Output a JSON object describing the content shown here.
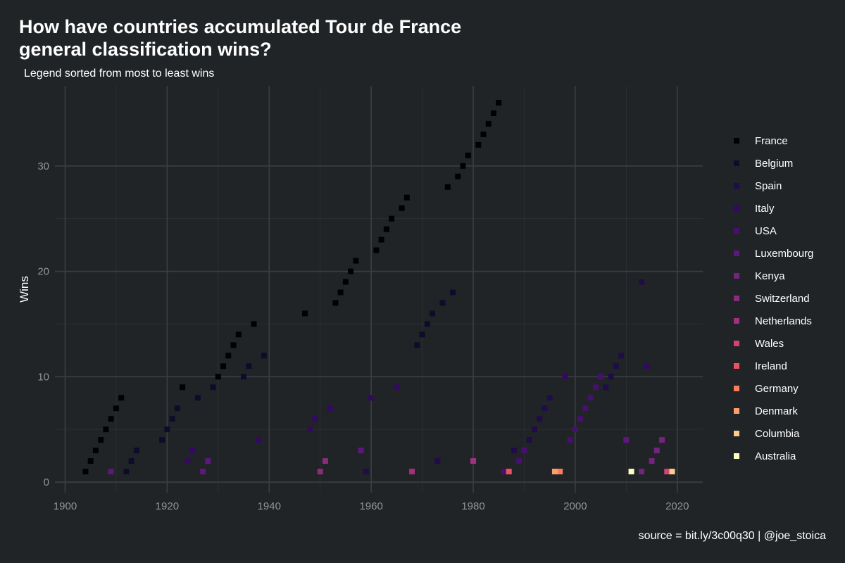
{
  "title_line1": "How have countries accumulated Tour de France",
  "title_line2": "general classification wins?",
  "subtitle": "Legend sorted from most to least wins",
  "caption": "source = bit.ly/3c00q30 | @joe_stoica",
  "chart_data": {
    "type": "scatter",
    "ylabel": "Wins",
    "xlabel": "",
    "xlim": [
      1898,
      2025
    ],
    "ylim": [
      -1,
      37.6
    ],
    "x_ticks": [
      1900,
      1920,
      1940,
      1960,
      1980,
      2000,
      2020
    ],
    "y_ticks": [
      0,
      10,
      20,
      30
    ],
    "grid": true,
    "legend_position": "right",
    "series": [
      {
        "name": "France",
        "color": "#000004",
        "points": [
          [
            1904,
            1
          ],
          [
            1905,
            2
          ],
          [
            1906,
            3
          ],
          [
            1907,
            4
          ],
          [
            1908,
            5
          ],
          [
            1909,
            6
          ],
          [
            1910,
            7
          ],
          [
            1911,
            8
          ],
          [
            1923,
            9
          ],
          [
            1930,
            10
          ],
          [
            1931,
            11
          ],
          [
            1932,
            12
          ],
          [
            1933,
            13
          ],
          [
            1934,
            14
          ],
          [
            1937,
            15
          ],
          [
            1947,
            16
          ],
          [
            1953,
            17
          ],
          [
            1954,
            18
          ],
          [
            1955,
            19
          ],
          [
            1956,
            20
          ],
          [
            1957,
            21
          ],
          [
            1961,
            22
          ],
          [
            1962,
            23
          ],
          [
            1963,
            24
          ],
          [
            1964,
            25
          ],
          [
            1966,
            26
          ],
          [
            1967,
            27
          ],
          [
            1975,
            28
          ],
          [
            1977,
            29
          ],
          [
            1978,
            30
          ],
          [
            1979,
            31
          ],
          [
            1981,
            32
          ],
          [
            1982,
            33
          ],
          [
            1983,
            34
          ],
          [
            1984,
            35
          ],
          [
            1985,
            36
          ]
        ]
      },
      {
        "name": "Belgium",
        "color": "#0e0b2b",
        "points": [
          [
            1912,
            1
          ],
          [
            1913,
            2
          ],
          [
            1914,
            3
          ],
          [
            1919,
            4
          ],
          [
            1920,
            5
          ],
          [
            1921,
            6
          ],
          [
            1922,
            7
          ],
          [
            1926,
            8
          ],
          [
            1929,
            9
          ],
          [
            1935,
            10
          ],
          [
            1936,
            11
          ],
          [
            1939,
            12
          ],
          [
            1969,
            13
          ],
          [
            1970,
            14
          ],
          [
            1971,
            15
          ],
          [
            1972,
            16
          ],
          [
            1974,
            17
          ],
          [
            1976,
            18
          ]
        ]
      },
      {
        "name": "Spain",
        "color": "#1f0c48",
        "points": [
          [
            1959,
            1
          ],
          [
            1973,
            2
          ],
          [
            1988,
            3
          ],
          [
            1991,
            4
          ],
          [
            1992,
            5
          ],
          [
            1993,
            6
          ],
          [
            1994,
            7
          ],
          [
            1995,
            8
          ],
          [
            2006,
            9
          ],
          [
            2007,
            10
          ],
          [
            2008,
            11
          ],
          [
            2009,
            12
          ],
          [
            2013,
            19
          ],
          [
            2014,
            11
          ]
        ]
      },
      {
        "name": "Italy",
        "color": "#330a5f",
        "points": [
          [
            1924,
            2
          ],
          [
            1925,
            3
          ],
          [
            1938,
            4
          ],
          [
            1948,
            5
          ],
          [
            1949,
            6
          ],
          [
            1952,
            7
          ],
          [
            1960,
            8
          ],
          [
            1965,
            9
          ],
          [
            1998,
            10
          ],
          [
            2014,
            11
          ]
        ]
      },
      {
        "name": "USA",
        "color": "#47106d",
        "points": [
          [
            1986,
            1
          ],
          [
            1989,
            2
          ],
          [
            1990,
            3
          ],
          [
            1999,
            4
          ],
          [
            2000,
            5
          ],
          [
            2001,
            6
          ],
          [
            2002,
            7
          ],
          [
            2003,
            8
          ],
          [
            2004,
            9
          ],
          [
            2005,
            10
          ]
        ]
      },
      {
        "name": "Luxembourg",
        "color": "#5d177f",
        "points": [
          [
            1909,
            1
          ],
          [
            1927,
            1
          ],
          [
            1928,
            2
          ],
          [
            1958,
            3
          ],
          [
            2010,
            4
          ]
        ]
      },
      {
        "name": "Kenya",
        "color": "#74237f",
        "points": [
          [
            2013,
            1
          ],
          [
            2015,
            2
          ],
          [
            2016,
            3
          ],
          [
            2017,
            4
          ]
        ]
      },
      {
        "name": "Switzerland",
        "color": "#8a2b7c",
        "points": [
          [
            1950,
            1
          ],
          [
            1951,
            2
          ]
        ]
      },
      {
        "name": "Netherlands",
        "color": "#a3307d",
        "points": [
          [
            1968,
            1
          ],
          [
            1980,
            2
          ]
        ]
      },
      {
        "name": "Wales",
        "color": "#d3436e",
        "points": [
          [
            2018,
            1
          ]
        ]
      },
      {
        "name": "Ireland",
        "color": "#e8535f",
        "points": [
          [
            1987,
            1
          ]
        ]
      },
      {
        "name": "Germany",
        "color": "#f87d5d",
        "points": [
          [
            1997,
            1
          ]
        ]
      },
      {
        "name": "Denmark",
        "color": "#fca06b",
        "points": [
          [
            1996,
            1
          ]
        ]
      },
      {
        "name": "Columbia",
        "color": "#fdc98d",
        "points": [
          [
            2019,
            1
          ]
        ]
      },
      {
        "name": "Australia",
        "color": "#fcfdbf",
        "points": [
          [
            2011,
            1
          ]
        ]
      }
    ]
  },
  "colors": {
    "background": "#212426",
    "grid": "#3b3f42",
    "tick_text": "#8f9498"
  }
}
